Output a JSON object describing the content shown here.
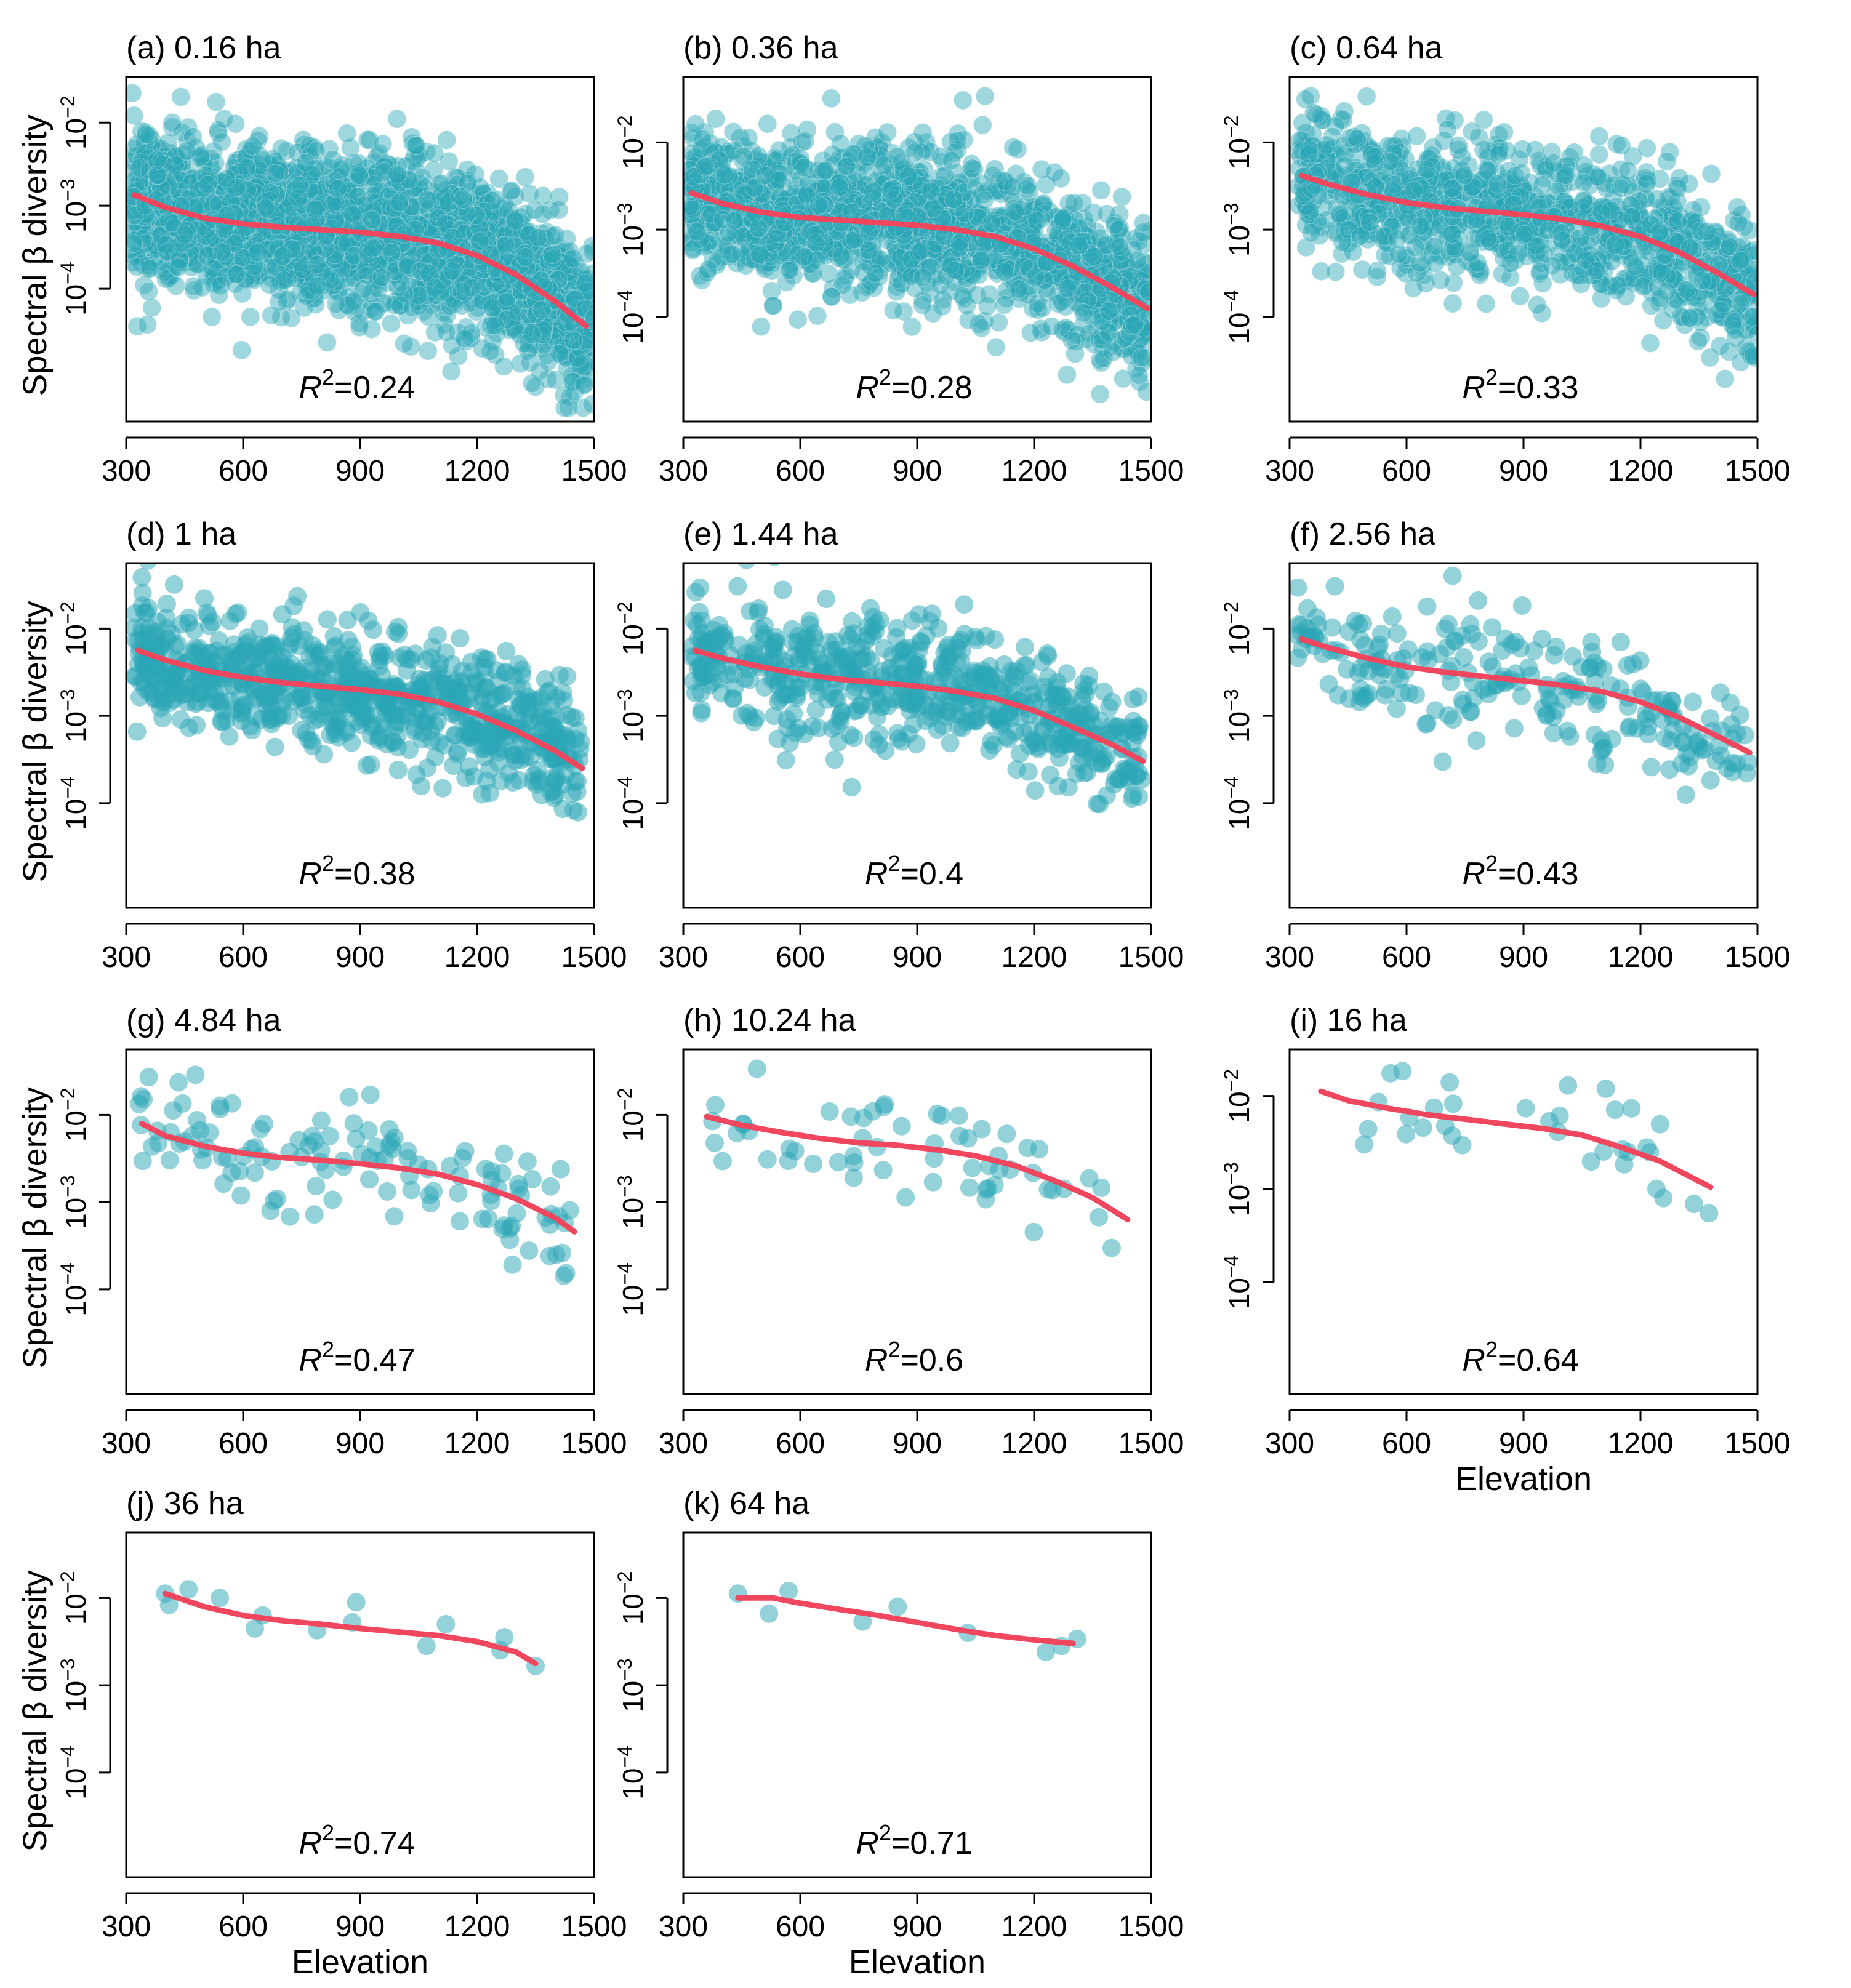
{
  "figure": {
    "y_axis_title": "Spectral β diversity",
    "x_axis_title": "Elevation",
    "colors": {
      "point": "#2aa6b6",
      "point_stroke": "#1b8f9e",
      "curve": "#f0465e",
      "axis": "#000000"
    }
  },
  "chart_data": [
    {
      "id": "a",
      "type": "scatter",
      "title": "(a) 0.16 ha",
      "r2_label": "R",
      "r2_sup": "2",
      "r2_value": "=0.24",
      "xlim": [
        300,
        1500
      ],
      "xticks": [
        300,
        600,
        900,
        1200,
        1500
      ],
      "ylim_log10": [
        -5.6,
        -1.45
      ],
      "yticks": [
        -2,
        -3,
        -4
      ],
      "ytick_labels": [
        "10",
        "10",
        "10"
      ],
      "ytick_exps": [
        "−2",
        "−3",
        "−4"
      ],
      "n": 2600,
      "x_range": [
        315,
        1500
      ],
      "noise_sd": 0.45,
      "show_ylabel": true,
      "show_xlabel": false,
      "curve": [
        [
          320,
          -2.87
        ],
        [
          400,
          -3.02
        ],
        [
          500,
          -3.15
        ],
        [
          600,
          -3.22
        ],
        [
          700,
          -3.26
        ],
        [
          800,
          -3.29
        ],
        [
          900,
          -3.32
        ],
        [
          1000,
          -3.37
        ],
        [
          1100,
          -3.45
        ],
        [
          1200,
          -3.6
        ],
        [
          1300,
          -3.83
        ],
        [
          1400,
          -4.15
        ],
        [
          1480,
          -4.45
        ]
      ]
    },
    {
      "id": "b",
      "type": "scatter",
      "title": "(b) 0.36 ha",
      "r2_label": "R",
      "r2_sup": "2",
      "r2_value": "=0.28",
      "xlim": [
        300,
        1500
      ],
      "xticks": [
        300,
        600,
        900,
        1200,
        1500
      ],
      "ylim_log10": [
        -5.2,
        -1.25
      ],
      "yticks": [
        -2,
        -3,
        -4
      ],
      "ytick_labels": [
        "10",
        "10",
        "10"
      ],
      "ytick_exps": [
        "−2",
        "−3",
        "−4"
      ],
      "n": 1700,
      "x_range": [
        315,
        1500
      ],
      "noise_sd": 0.42,
      "show_ylabel": false,
      "show_xlabel": false,
      "curve": [
        [
          320,
          -2.58
        ],
        [
          400,
          -2.7
        ],
        [
          500,
          -2.8
        ],
        [
          600,
          -2.86
        ],
        [
          700,
          -2.89
        ],
        [
          800,
          -2.92
        ],
        [
          900,
          -2.95
        ],
        [
          1000,
          -3.0
        ],
        [
          1100,
          -3.08
        ],
        [
          1200,
          -3.22
        ],
        [
          1300,
          -3.42
        ],
        [
          1400,
          -3.66
        ],
        [
          1490,
          -3.9
        ]
      ]
    },
    {
      "id": "c",
      "type": "scatter",
      "title": "(c) 0.64 ha",
      "r2_label": "R",
      "r2_sup": "2",
      "r2_value": "=0.33",
      "xlim": [
        300,
        1500
      ],
      "xticks": [
        300,
        600,
        900,
        1200,
        1500
      ],
      "ylim_log10": [
        -5.2,
        -1.25
      ],
      "yticks": [
        -2,
        -3,
        -4
      ],
      "ytick_labels": [
        "10",
        "10",
        "10"
      ],
      "ytick_exps": [
        "−2",
        "−3",
        "−4"
      ],
      "n": 1100,
      "x_range": [
        320,
        1500
      ],
      "noise_sd": 0.4,
      "show_ylabel": false,
      "show_xlabel": false,
      "curve": [
        [
          330,
          -2.38
        ],
        [
          400,
          -2.48
        ],
        [
          500,
          -2.6
        ],
        [
          600,
          -2.69
        ],
        [
          700,
          -2.75
        ],
        [
          800,
          -2.79
        ],
        [
          900,
          -2.83
        ],
        [
          1000,
          -2.88
        ],
        [
          1100,
          -2.96
        ],
        [
          1200,
          -3.08
        ],
        [
          1300,
          -3.26
        ],
        [
          1400,
          -3.5
        ],
        [
          1490,
          -3.74
        ]
      ]
    },
    {
      "id": "d",
      "type": "scatter",
      "title": "(d) 1 ha",
      "r2_label": "R",
      "r2_sup": "2",
      "r2_value": "=0.38",
      "xlim": [
        300,
        1500
      ],
      "xticks": [
        300,
        600,
        900,
        1200,
        1500
      ],
      "ylim_log10": [
        -5.2,
        -1.25
      ],
      "yticks": [
        -2,
        -3,
        -4
      ],
      "ytick_labels": [
        "10",
        "10",
        "10"
      ],
      "ytick_exps": [
        "−2",
        "−3",
        "−4"
      ],
      "n": 800,
      "x_range": [
        320,
        1470
      ],
      "noise_sd": 0.36,
      "show_ylabel": true,
      "show_xlabel": false,
      "curve": [
        [
          330,
          -2.25
        ],
        [
          400,
          -2.36
        ],
        [
          500,
          -2.48
        ],
        [
          600,
          -2.56
        ],
        [
          700,
          -2.62
        ],
        [
          800,
          -2.66
        ],
        [
          900,
          -2.7
        ],
        [
          1000,
          -2.75
        ],
        [
          1100,
          -2.84
        ],
        [
          1200,
          -2.98
        ],
        [
          1300,
          -3.17
        ],
        [
          1400,
          -3.4
        ],
        [
          1470,
          -3.6
        ]
      ]
    },
    {
      "id": "e",
      "type": "scatter",
      "title": "(e) 1.44 ha",
      "r2_label": "R",
      "r2_sup": "2",
      "r2_value": "=0.4",
      "xlim": [
        300,
        1500
      ],
      "xticks": [
        300,
        600,
        900,
        1200,
        1500
      ],
      "ylim_log10": [
        -5.2,
        -1.25
      ],
      "yticks": [
        -2,
        -3,
        -4
      ],
      "ytick_labels": [
        "10",
        "10",
        "10"
      ],
      "ytick_exps": [
        "−2",
        "−3",
        "−4"
      ],
      "n": 600,
      "x_range": [
        320,
        1480
      ],
      "noise_sd": 0.36,
      "show_ylabel": false,
      "show_xlabel": false,
      "curve": [
        [
          330,
          -2.25
        ],
        [
          400,
          -2.34
        ],
        [
          500,
          -2.44
        ],
        [
          600,
          -2.52
        ],
        [
          700,
          -2.58
        ],
        [
          800,
          -2.62
        ],
        [
          900,
          -2.66
        ],
        [
          1000,
          -2.72
        ],
        [
          1100,
          -2.8
        ],
        [
          1200,
          -2.94
        ],
        [
          1300,
          -3.13
        ],
        [
          1400,
          -3.33
        ],
        [
          1480,
          -3.52
        ]
      ]
    },
    {
      "id": "f",
      "type": "scatter",
      "title": "(f) 2.56 ha",
      "r2_label": "R",
      "r2_sup": "2",
      "r2_value": "=0.43",
      "xlim": [
        300,
        1500
      ],
      "xticks": [
        300,
        600,
        900,
        1200,
        1500
      ],
      "ylim_log10": [
        -5.2,
        -1.25
      ],
      "yticks": [
        -2,
        -3,
        -4
      ],
      "ytick_labels": [
        "10",
        "10",
        "10"
      ],
      "ytick_exps": [
        "−2",
        "−3",
        "−4"
      ],
      "n": 240,
      "x_range": [
        320,
        1480
      ],
      "noise_sd": 0.35,
      "show_ylabel": false,
      "show_xlabel": false,
      "curve": [
        [
          330,
          -2.12
        ],
        [
          400,
          -2.22
        ],
        [
          500,
          -2.34
        ],
        [
          600,
          -2.44
        ],
        [
          700,
          -2.5
        ],
        [
          800,
          -2.55
        ],
        [
          900,
          -2.6
        ],
        [
          1000,
          -2.65
        ],
        [
          1100,
          -2.72
        ],
        [
          1200,
          -2.84
        ],
        [
          1300,
          -3.02
        ],
        [
          1400,
          -3.24
        ],
        [
          1480,
          -3.42
        ]
      ]
    },
    {
      "id": "g",
      "type": "scatter",
      "title": "(g) 4.84 ha",
      "r2_label": "R",
      "r2_sup": "2",
      "r2_value": "=0.47",
      "xlim": [
        300,
        1500
      ],
      "xticks": [
        300,
        600,
        900,
        1200,
        1500
      ],
      "ylim_log10": [
        -5.2,
        -1.25
      ],
      "yticks": [
        -2,
        -3,
        -4
      ],
      "ytick_labels": [
        "10",
        "10",
        "10"
      ],
      "ytick_exps": [
        "−2",
        "−3",
        "−4"
      ],
      "n": 130,
      "x_range": [
        330,
        1450
      ],
      "noise_sd": 0.34,
      "show_ylabel": true,
      "show_xlabel": false,
      "curve": [
        [
          340,
          -2.1
        ],
        [
          400,
          -2.24
        ],
        [
          500,
          -2.36
        ],
        [
          600,
          -2.44
        ],
        [
          700,
          -2.49
        ],
        [
          800,
          -2.52
        ],
        [
          900,
          -2.56
        ],
        [
          1000,
          -2.61
        ],
        [
          1100,
          -2.68
        ],
        [
          1200,
          -2.8
        ],
        [
          1300,
          -2.96
        ],
        [
          1400,
          -3.18
        ],
        [
          1450,
          -3.34
        ]
      ]
    },
    {
      "id": "h",
      "type": "scatter",
      "title": "(h) 10.24 ha",
      "r2_label": "R",
      "r2_sup": "2",
      "r2_value": "=0.6",
      "xlim": [
        300,
        1500
      ],
      "xticks": [
        300,
        600,
        900,
        1200,
        1500
      ],
      "ylim_log10": [
        -5.2,
        -1.25
      ],
      "yticks": [
        -2,
        -3,
        -4
      ],
      "ytick_labels": [
        "10",
        "10",
        "10"
      ],
      "ytick_exps": [
        "−2",
        "−3",
        "−4"
      ],
      "n": 60,
      "x_range": [
        355,
        1440
      ],
      "noise_sd": 0.25,
      "show_ylabel": false,
      "show_xlabel": false,
      "curve": [
        [
          360,
          -2.02
        ],
        [
          450,
          -2.12
        ],
        [
          550,
          -2.2
        ],
        [
          650,
          -2.27
        ],
        [
          750,
          -2.32
        ],
        [
          850,
          -2.35
        ],
        [
          950,
          -2.4
        ],
        [
          1050,
          -2.47
        ],
        [
          1150,
          -2.58
        ],
        [
          1250,
          -2.75
        ],
        [
          1350,
          -2.95
        ],
        [
          1440,
          -3.2
        ]
      ]
    },
    {
      "id": "i",
      "type": "scatter",
      "title": "(i) 16 ha",
      "r2_label": "R",
      "r2_sup": "2",
      "r2_value": "=0.64",
      "xlim": [
        300,
        1500
      ],
      "xticks": [
        300,
        600,
        900,
        1200,
        1500
      ],
      "ylim_log10": [
        -5.2,
        -1.5
      ],
      "yticks": [
        -2,
        -3,
        -4
      ],
      "ytick_labels": [
        "10",
        "10",
        "10"
      ],
      "ytick_exps": [
        "−2",
        "−3",
        "−4"
      ],
      "n": 34,
      "x_range": [
        380,
        1380
      ],
      "noise_sd": 0.22,
      "show_ylabel": false,
      "show_xlabel": true,
      "curve": [
        [
          380,
          -1.95
        ],
        [
          450,
          -2.05
        ],
        [
          550,
          -2.13
        ],
        [
          650,
          -2.2
        ],
        [
          750,
          -2.25
        ],
        [
          850,
          -2.3
        ],
        [
          950,
          -2.35
        ],
        [
          1050,
          -2.42
        ],
        [
          1150,
          -2.55
        ],
        [
          1250,
          -2.7
        ],
        [
          1380,
          -2.98
        ]
      ]
    },
    {
      "id": "j",
      "type": "scatter",
      "title": "(j) 36 ha",
      "r2_label": "R",
      "r2_sup": "2",
      "r2_value": "=0.74",
      "xlim": [
        300,
        1500
      ],
      "xticks": [
        300,
        600,
        900,
        1200,
        1500
      ],
      "ylim_log10": [
        -5.2,
        -1.25
      ],
      "yticks": [
        -2,
        -3,
        -4
      ],
      "ytick_labels": [
        "10",
        "10",
        "10"
      ],
      "ytick_exps": [
        "−2",
        "−3",
        "−4"
      ],
      "points": [
        [
          400,
          -1.95
        ],
        [
          410,
          -2.08
        ],
        [
          460,
          -1.9
        ],
        [
          540,
          -2.0
        ],
        [
          630,
          -2.35
        ],
        [
          650,
          -2.2
        ],
        [
          790,
          -2.37
        ],
        [
          880,
          -2.28
        ],
        [
          890,
          -2.05
        ],
        [
          1070,
          -2.55
        ],
        [
          1120,
          -2.3
        ],
        [
          1260,
          -2.6
        ],
        [
          1270,
          -2.45
        ],
        [
          1350,
          -2.78
        ]
      ],
      "show_ylabel": true,
      "show_xlabel": true,
      "curve": [
        [
          400,
          -1.95
        ],
        [
          500,
          -2.1
        ],
        [
          600,
          -2.2
        ],
        [
          700,
          -2.26
        ],
        [
          800,
          -2.3
        ],
        [
          900,
          -2.35
        ],
        [
          1000,
          -2.39
        ],
        [
          1100,
          -2.43
        ],
        [
          1200,
          -2.5
        ],
        [
          1300,
          -2.62
        ],
        [
          1350,
          -2.75
        ]
      ]
    },
    {
      "id": "k",
      "type": "scatter",
      "title": "(k) 64 ha",
      "r2_label": "R",
      "r2_sup": "2",
      "r2_value": "=0.71",
      "xlim": [
        300,
        1500
      ],
      "xticks": [
        300,
        600,
        900,
        1200,
        1500
      ],
      "ylim_log10": [
        -5.2,
        -1.25
      ],
      "yticks": [
        -2,
        -3,
        -4
      ],
      "ytick_labels": [
        "10",
        "10",
        "10"
      ],
      "ytick_exps": [
        "−2",
        "−3",
        "−4"
      ],
      "points": [
        [
          440,
          -1.95
        ],
        [
          520,
          -2.18
        ],
        [
          570,
          -1.92
        ],
        [
          760,
          -2.27
        ],
        [
          850,
          -2.1
        ],
        [
          1030,
          -2.4
        ],
        [
          1230,
          -2.62
        ],
        [
          1270,
          -2.55
        ],
        [
          1310,
          -2.47
        ]
      ],
      "show_ylabel": false,
      "show_xlabel": true,
      "curve": [
        [
          440,
          -2.0
        ],
        [
          530,
          -2.0
        ],
        [
          600,
          -2.06
        ],
        [
          700,
          -2.13
        ],
        [
          800,
          -2.2
        ],
        [
          900,
          -2.28
        ],
        [
          1000,
          -2.36
        ],
        [
          1100,
          -2.43
        ],
        [
          1200,
          -2.48
        ],
        [
          1300,
          -2.52
        ]
      ]
    }
  ]
}
